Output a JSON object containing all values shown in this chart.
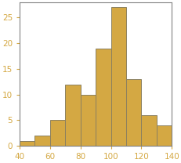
{
  "bin_edges": [
    40,
    50,
    60,
    70,
    80,
    90,
    100,
    110,
    120,
    130,
    140
  ],
  "bar_heights": [
    1,
    2,
    5,
    12,
    10,
    19,
    27,
    13,
    6,
    4
  ],
  "bar_color": "#D4A843",
  "bar_edgecolor": "#8B8060",
  "xlim": [
    40,
    140
  ],
  "ylim": [
    0,
    28
  ],
  "xticks": [
    40,
    60,
    80,
    100,
    120,
    140
  ],
  "yticks": [
    0,
    5,
    10,
    15,
    20,
    25
  ],
  "tick_color": "#4472C4",
  "tick_labelcolor": "#D4A843",
  "tick_labelsize": 7.5,
  "spine_color": "#808080",
  "background_color": "#FFFFFF",
  "figsize": [
    2.32,
    2.08
  ],
  "dpi": 100
}
